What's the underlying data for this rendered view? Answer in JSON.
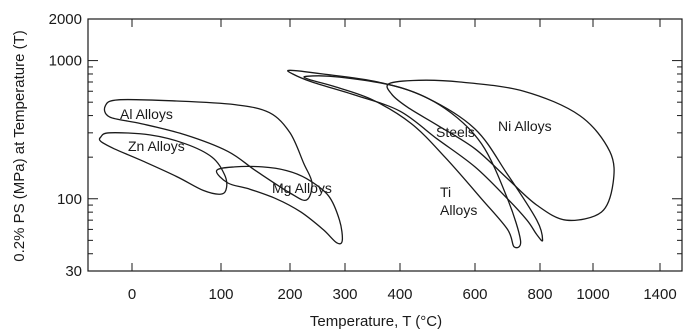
{
  "chart_data": {
    "type": "area",
    "title": "",
    "xlabel": "Temperature, T (°C)",
    "ylabel": "0.2% PS (MPa) at Temperature (T)",
    "y_scale": "log",
    "ylim": [
      30,
      2000
    ],
    "y_ticks": [
      30,
      100,
      1000,
      2000
    ],
    "y_tick_labels": [
      "30",
      "100",
      "1000",
      "2000"
    ],
    "x_tick_labels": [
      "0",
      "100",
      "200",
      "300",
      "400",
      "600",
      "800",
      "1000",
      "1400"
    ],
    "regions": [
      {
        "name": "Al Alloys",
        "label_lines": [
          "Al Alloys"
        ],
        "outline": [
          [
            -30,
            470
          ],
          [
            -15,
            520
          ],
          [
            50,
            510
          ],
          [
            120,
            480
          ],
          [
            170,
            420
          ],
          [
            200,
            300
          ],
          [
            225,
            180
          ],
          [
            240,
            130
          ],
          [
            230,
            98
          ],
          [
            200,
            110
          ],
          [
            150,
            160
          ],
          [
            110,
            220
          ],
          [
            60,
            290
          ],
          [
            10,
            350
          ],
          [
            -25,
            390
          ]
        ]
      },
      {
        "name": "Zn Alloys",
        "label_lines": [
          "Zn Alloys"
        ],
        "outline": [
          [
            -35,
            280
          ],
          [
            -25,
            300
          ],
          [
            20,
            290
          ],
          [
            60,
            250
          ],
          [
            90,
            200
          ],
          [
            105,
            150
          ],
          [
            108,
            120
          ],
          [
            100,
            108
          ],
          [
            80,
            115
          ],
          [
            50,
            145
          ],
          [
            10,
            190
          ],
          [
            -20,
            230
          ],
          [
            -35,
            260
          ]
        ]
      },
      {
        "name": "Mg Alloys",
        "label_lines": [
          "Mg Alloys"
        ],
        "outline": [
          [
            95,
            160
          ],
          [
            120,
            170
          ],
          [
            160,
            170
          ],
          [
            195,
            160
          ],
          [
            230,
            140
          ],
          [
            270,
            105
          ],
          [
            290,
            70
          ],
          [
            295,
            50
          ],
          [
            285,
            48
          ],
          [
            260,
            60
          ],
          [
            220,
            80
          ],
          [
            180,
            100
          ],
          [
            140,
            118
          ],
          [
            110,
            130
          ]
        ]
      },
      {
        "name": "Steels",
        "label_lines": [
          "Steels"
        ],
        "outline": [
          [
            200,
            850
          ],
          [
            260,
            800
          ],
          [
            360,
            700
          ],
          [
            470,
            540
          ],
          [
            600,
            320
          ],
          [
            700,
            150
          ],
          [
            790,
            70
          ],
          [
            810,
            50
          ],
          [
            790,
            55
          ],
          [
            760,
            70
          ],
          [
            700,
            100
          ],
          [
            600,
            170
          ],
          [
            500,
            270
          ],
          [
            400,
            430
          ],
          [
            320,
            560
          ],
          [
            240,
            700
          ],
          [
            205,
            800
          ]
        ]
      },
      {
        "name": "Ti Alloys",
        "label_lines": [
          "Ti",
          "Alloys"
        ],
        "outline": [
          [
            230,
            770
          ],
          [
            290,
            760
          ],
          [
            400,
            640
          ],
          [
            520,
            450
          ],
          [
            620,
            250
          ],
          [
            700,
            100
          ],
          [
            740,
            50
          ],
          [
            720,
            45
          ],
          [
            700,
            60
          ],
          [
            620,
            100
          ],
          [
            520,
            200
          ],
          [
            430,
            350
          ],
          [
            350,
            520
          ],
          [
            280,
            650
          ],
          [
            235,
            730
          ]
        ]
      },
      {
        "name": "Ni Alloys",
        "label_lines": [
          "Ni Alloys"
        ],
        "outline": [
          [
            380,
            680
          ],
          [
            450,
            720
          ],
          [
            560,
            700
          ],
          [
            750,
            600
          ],
          [
            950,
            400
          ],
          [
            1100,
            220
          ],
          [
            1120,
            130
          ],
          [
            1050,
            80
          ],
          [
            900,
            70
          ],
          [
            790,
            90
          ],
          [
            700,
            140
          ],
          [
            600,
            230
          ],
          [
            500,
            340
          ],
          [
            420,
            460
          ],
          [
            385,
            570
          ]
        ]
      }
    ]
  }
}
